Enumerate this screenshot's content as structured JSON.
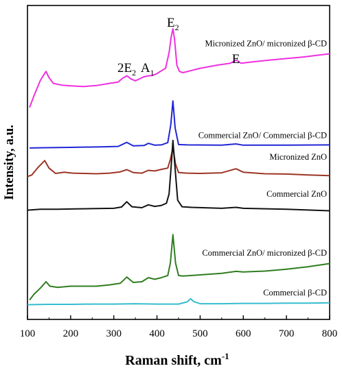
{
  "chart_data": {
    "type": "line",
    "title": "",
    "xlabel": "Raman shift, cm",
    "xlabel_sup": "-1",
    "ylabel": "Intensity, a.u.",
    "xlim": [
      100,
      800
    ],
    "ylim": [
      0,
      100
    ],
    "x_ticks": [
      "100",
      "200",
      "300",
      "400",
      "500",
      "600",
      "700",
      "800"
    ],
    "grid": false,
    "legend": "inline labels next to curves",
    "peak_annotations": [
      {
        "text": "2E",
        "sub": "2",
        "x": 330
      },
      {
        "text": "A",
        "sub": "1",
        "x": 378
      },
      {
        "text": "E",
        "sub": "2",
        "x": 437
      },
      {
        "text": "E",
        "sub": "",
        "x": 583
      }
    ],
    "series": [
      {
        "name": "Micronized ZnO/ micronized β-CD",
        "color": "#ee2fe0",
        "x": [
          105,
          115,
          130,
          143,
          150,
          160,
          180,
          200,
          230,
          260,
          290,
          310,
          320,
          330,
          340,
          350,
          370,
          380,
          390,
          400,
          410,
          420,
          428,
          433,
          437,
          441,
          446,
          452,
          460,
          480,
          500,
          540,
          570,
          583,
          595,
          620,
          660,
          700,
          740,
          770,
          800
        ],
        "values": [
          67.5,
          71.2,
          76.2,
          79.0,
          77.0,
          75.2,
          74.6,
          74.4,
          74.2,
          74.5,
          75.2,
          75.6,
          76.8,
          77.6,
          76.6,
          76.0,
          77.3,
          77.6,
          77.7,
          78.3,
          79.2,
          80.0,
          85.0,
          90.0,
          92.6,
          89.0,
          81.0,
          79.0,
          78.6,
          79.3,
          80.0,
          81.0,
          81.6,
          82.6,
          81.6,
          82.0,
          82.6,
          83.1,
          83.6,
          84.1,
          84.6
        ]
      },
      {
        "name": "Commercial ZnO/ Commercial β-CD",
        "color": "#1f25d6",
        "x": [
          105,
          140,
          200,
          280,
          310,
          330,
          345,
          370,
          380,
          395,
          410,
          425,
          432,
          437,
          442,
          450,
          470,
          550,
          583,
          600,
          700,
          800
        ],
        "values": [
          54.6,
          54.7,
          54.8,
          55.0,
          55.1,
          56.4,
          55.3,
          55.4,
          56.1,
          55.5,
          55.6,
          56.3,
          62.0,
          69.6,
          61.0,
          55.7,
          55.6,
          55.5,
          55.9,
          55.5,
          55.5,
          55.6
        ]
      },
      {
        "name": "Micronized ZnO",
        "color": "#9c3424",
        "x": [
          100,
          110,
          125,
          140,
          150,
          165,
          185,
          205,
          230,
          260,
          290,
          315,
          330,
          345,
          365,
          380,
          395,
          410,
          425,
          431,
          437,
          443,
          450,
          470,
          500,
          550,
          583,
          600,
          650,
          700,
          750,
          800
        ],
        "values": [
          45.5,
          46.0,
          48.5,
          50.6,
          48.2,
          46.5,
          46.9,
          46.6,
          46.5,
          46.4,
          46.6,
          47.0,
          47.7,
          46.8,
          46.6,
          47.5,
          47.3,
          47.8,
          48.2,
          51.0,
          54.6,
          49.5,
          46.8,
          46.6,
          46.5,
          46.7,
          48.0,
          46.9,
          46.4,
          46.3,
          46.0,
          45.8
        ]
      },
      {
        "name": "Commercial ZnO",
        "color": "#111111",
        "x": [
          100,
          130,
          170,
          210,
          260,
          300,
          318,
          330,
          342,
          365,
          380,
          395,
          410,
          422,
          428,
          433,
          437,
          442,
          448,
          458,
          480,
          550,
          583,
          600,
          700,
          800
        ],
        "values": [
          34.8,
          35.1,
          35.1,
          35.2,
          35.3,
          35.4,
          35.8,
          37.5,
          35.9,
          35.6,
          36.5,
          36.0,
          36.3,
          37.0,
          40.0,
          49.0,
          57.0,
          48.0,
          38.0,
          35.9,
          35.7,
          35.4,
          35.7,
          35.4,
          35.1,
          34.6
        ]
      },
      {
        "name": "Commercial ZnO/ micronized β-CD",
        "color": "#2f7d1f",
        "x": [
          105,
          115,
          130,
          143,
          152,
          170,
          200,
          230,
          260,
          290,
          315,
          330,
          345,
          365,
          380,
          395,
          410,
          425,
          431,
          437,
          443,
          450,
          460,
          500,
          550,
          583,
          600,
          650,
          700,
          750,
          800
        ],
        "values": [
          6.2,
          8.0,
          10.0,
          12.0,
          10.6,
          10.2,
          10.6,
          10.6,
          10.6,
          11.0,
          11.5,
          13.5,
          11.8,
          12.0,
          13.3,
          12.8,
          13.3,
          14.0,
          18.0,
          27.0,
          18.0,
          14.0,
          13.8,
          14.2,
          14.7,
          15.3,
          15.1,
          15.4,
          16.0,
          16.8,
          17.8
        ]
      },
      {
        "name": "Commercial β-CD",
        "color": "#35bcd0",
        "x": [
          100,
          150,
          200,
          250,
          300,
          350,
          400,
          450,
          470,
          478,
          485,
          500,
          550,
          600,
          650,
          700,
          750,
          800
        ],
        "values": [
          4.7,
          4.8,
          4.8,
          4.9,
          4.9,
          5.0,
          4.9,
          4.9,
          5.6,
          6.6,
          5.7,
          5.0,
          5.0,
          5.1,
          5.1,
          5.2,
          5.2,
          5.3
        ]
      }
    ],
    "series_label_rows": [
      {
        "name": "Micronized ZnO/ micronized β-CD",
        "y": 87.0
      },
      {
        "name": "Commercial ZnO/ Commercial β-CD",
        "y": 57.8
      },
      {
        "name": "Micronized ZnO",
        "y": 50.9
      },
      {
        "name": "Commercial ZnO",
        "y": 39.1
      },
      {
        "name": "Commercial ZnO/ micronized β-CD",
        "y": 20.3
      },
      {
        "name": "Commercial β-CD",
        "y": 7.6
      }
    ]
  }
}
